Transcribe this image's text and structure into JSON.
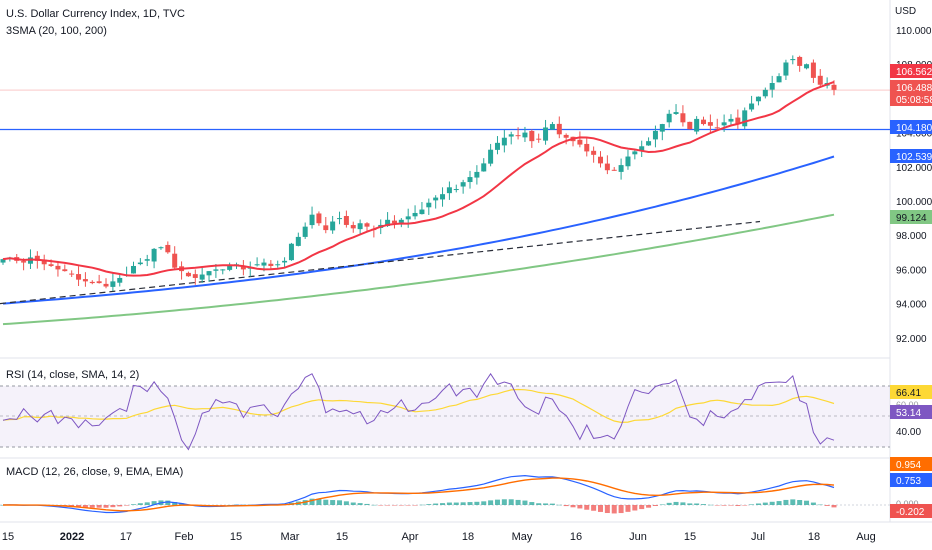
{
  "header": {
    "title": "U.S. Dollar Currency Index, 1D, TVC",
    "sma_legend": "3SMA (20, 100, 200)",
    "currency": "USD"
  },
  "colors": {
    "up": "#26a69a",
    "down": "#ef5350",
    "sma20": "#f23645",
    "sma100": "#2962ff",
    "sma200": "#81c784",
    "hline": "#2962ff",
    "rsi": "#7e57c2",
    "rsi_ma": "#fdd835",
    "macd": "#2962ff",
    "signal": "#ff6d00"
  },
  "price_axis": {
    "ticks": [
      "110.000",
      "108.000",
      "104.000",
      "102.000",
      "100.000",
      "98.000",
      "96.000",
      "94.000",
      "92.000"
    ],
    "tick_values": [
      110,
      108,
      104,
      102,
      100,
      98,
      96,
      94,
      92
    ]
  },
  "price_labels": {
    "sma20_value": "106.562",
    "last_price": "106.488",
    "countdown": "05:08:58",
    "hline_value": "104.180",
    "sma100_value": "102.539",
    "sma200_value": "99.124"
  },
  "rsi_panel": {
    "legend": "RSI (14, close, SMA, 14, 2)",
    "ticks": [
      "40.00"
    ],
    "rsi_ma_value": "66.41",
    "rsi_value": "53.14",
    "hidden_tick": "60.00"
  },
  "macd_panel": {
    "legend": "MACD (12, 26, close, 9, EMA, EMA)",
    "signal_value": "0.954",
    "macd_value": "0.753",
    "hist_value": "-0.202",
    "zero_tick": "0.000"
  },
  "time_axis": {
    "labels": [
      "15",
      "2022",
      "17",
      "Feb",
      "15",
      "Mar",
      "15",
      "Apr",
      "18",
      "May",
      "16",
      "Jun",
      "15",
      "Jul",
      "18",
      "Aug"
    ]
  },
  "chart_data": {
    "type": "candlestick",
    "title": "U.S. Dollar Currency Index, 1D, TVC",
    "ylabel": "USD",
    "ylim": [
      91,
      111
    ],
    "close_series": [
      96.6,
      96.7,
      96.5,
      96.4,
      96.7,
      96.5,
      96.3,
      96.2,
      96.0,
      95.9,
      95.7,
      95.4,
      95.3,
      95.2,
      95.2,
      95.0,
      95.3,
      95.5,
      95.7,
      96.2,
      96.4,
      96.6,
      97.2,
      97.3,
      97.0,
      96.1,
      95.9,
      95.6,
      95.5,
      95.7,
      95.9,
      96.0,
      96.0,
      96.2,
      96.3,
      96.0,
      96.1,
      96.3,
      96.4,
      96.2,
      96.3,
      96.5,
      97.5,
      97.9,
      98.5,
      99.2,
      98.7,
      98.3,
      98.8,
      99.0,
      98.6,
      98.4,
      98.7,
      98.5,
      98.3,
      98.6,
      98.9,
      98.7,
      98.9,
      99.1,
      99.3,
      99.5,
      99.9,
      100.2,
      100.4,
      100.8,
      100.7,
      101.1,
      101.4,
      101.7,
      102.2,
      103.0,
      103.4,
      103.7,
      103.9,
      103.8,
      104.0,
      103.5,
      103.6,
      104.3,
      104.5,
      103.9,
      103.7,
      103.5,
      103.3,
      102.9,
      102.7,
      102.2,
      101.8,
      101.8,
      102.1,
      102.6,
      102.9,
      103.2,
      103.5,
      104.1,
      104.5,
      105.1,
      105.2,
      104.6,
      104.2,
      104.8,
      104.5,
      104.4,
      104.3,
      104.6,
      104.8,
      104.5,
      105.3,
      105.7,
      106.1,
      106.5,
      106.9,
      107.3,
      108.1,
      108.3,
      107.9,
      108.0,
      107.2,
      106.8,
      106.9,
      106.5
    ],
    "series": [
      {
        "name": "SMA 20",
        "last": 106.562
      },
      {
        "name": "SMA 100",
        "last": 102.539
      },
      {
        "name": "SMA 200",
        "last": 99.124
      }
    ],
    "annotations": [
      {
        "type": "horizontal_line",
        "value": 104.18
      },
      {
        "type": "trend_line",
        "style": "dashed",
        "from": 94.0,
        "to": 98.8
      }
    ],
    "x_tick_labels": [
      "15",
      "2022",
      "17",
      "Feb",
      "15",
      "Mar",
      "15",
      "Apr",
      "18",
      "May",
      "16",
      "Jun",
      "15",
      "Jul",
      "18",
      "Aug"
    ]
  }
}
